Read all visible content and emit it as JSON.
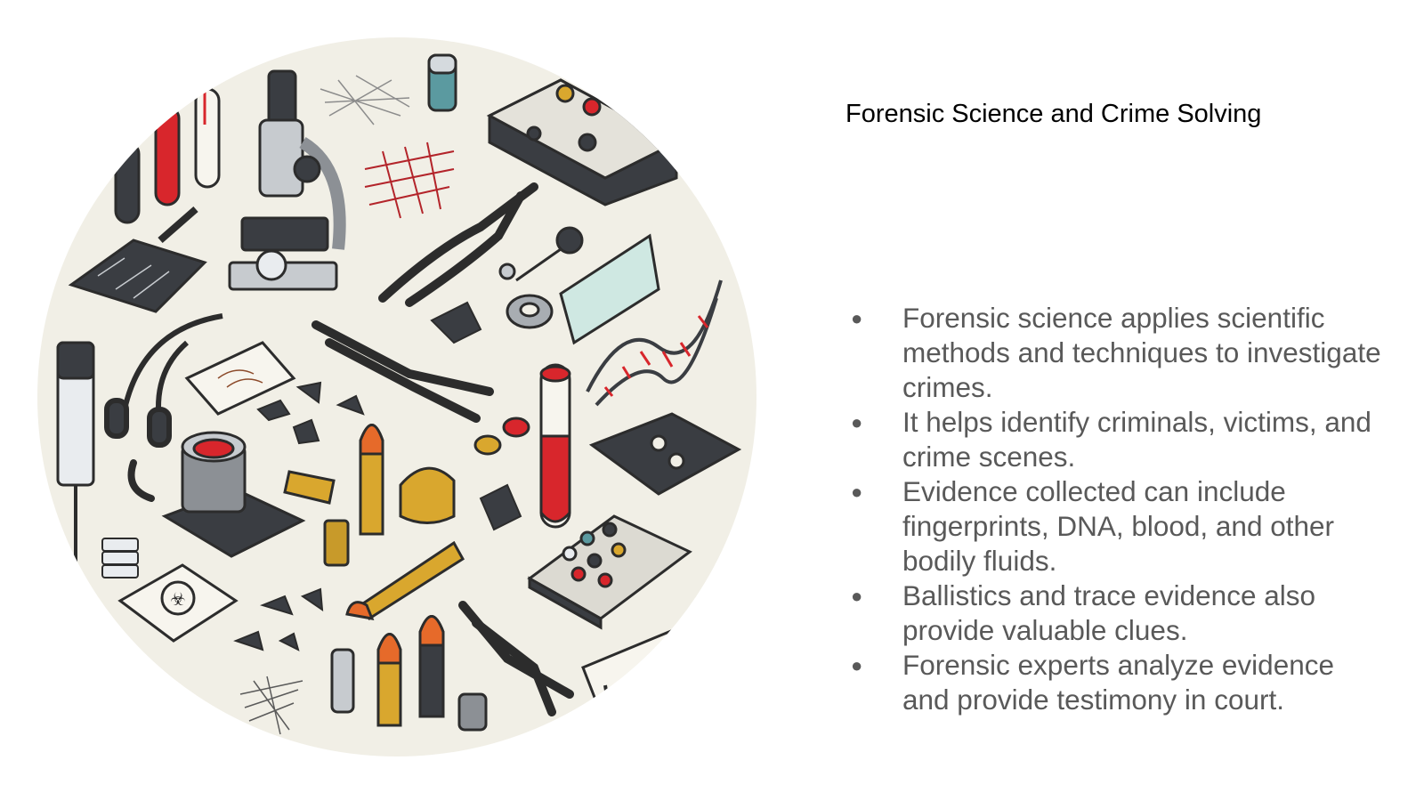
{
  "slide": {
    "title": "Forensic Science and Crime Solving",
    "bullets": [
      "Forensic science applies scientific methods and techniques to investigate crimes.",
      "It helps identify criminals, victims, and crime scenes.",
      "Evidence collected can include fingerprints, DNA, blood, and other bodily fluids.",
      "Ballistics and trace evidence also provide valuable clues.",
      "Forensic experts analyze evidence and provide testimony in court."
    ],
    "bullet_glyph": "●"
  },
  "illustration": {
    "subject": "circular collage of forensic tools and evidence",
    "icons": [
      "microscope-icon",
      "test-tube-icon",
      "pliers-icon",
      "bullet-icon",
      "dna-helix-icon",
      "fingerprint-card-icon",
      "evidence-scanner-icon",
      "syringe-icon",
      "glass-slide-icon",
      "fiber-sample-icon"
    ],
    "colors": {
      "background": "#f1efe6",
      "outline": "#2c2c2c",
      "blood_red": "#d8262c",
      "brass": "#d9a72e",
      "steel": "#a8adb2",
      "dark_metal": "#3a3d42",
      "teal": "#5b9aa0"
    }
  }
}
